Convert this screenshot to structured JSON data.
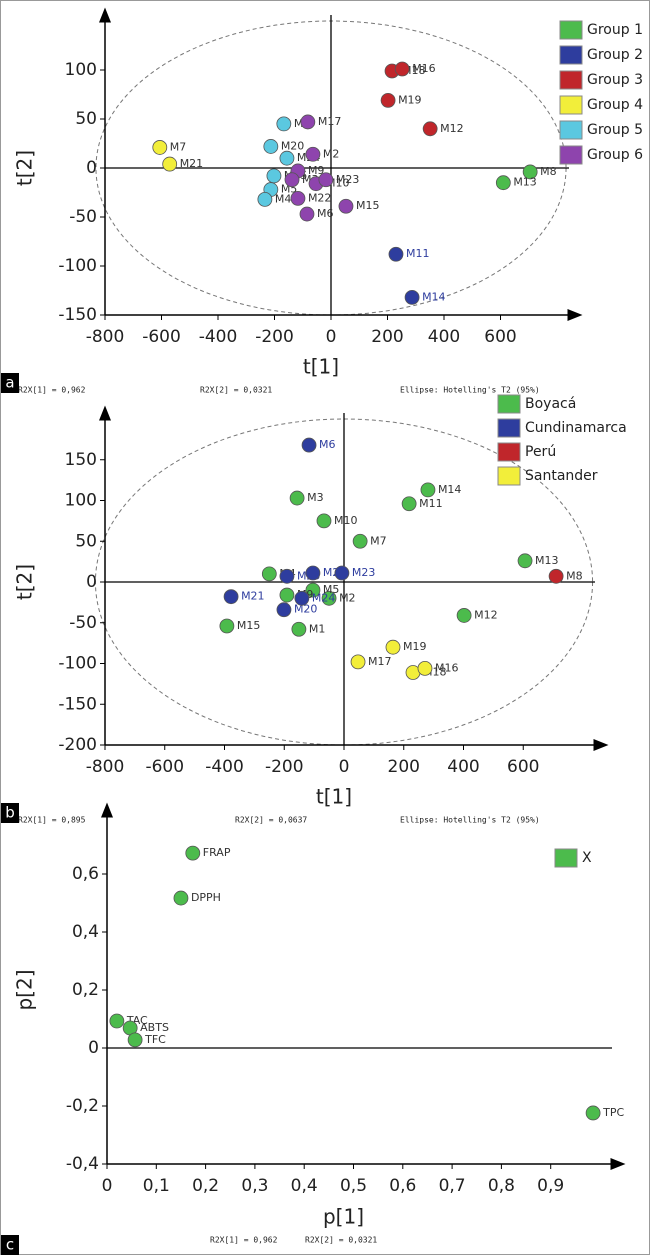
{
  "chart_data": [
    {
      "type": "scatter",
      "panel": "a",
      "x_label": "t[1]",
      "y_label": "t[2]",
      "xlim": [
        -800,
        800
      ],
      "ylim": [
        -150,
        150
      ],
      "xticks": [
        -800,
        -600,
        -400,
        -200,
        0,
        200,
        400,
        600
      ],
      "yticks": [
        -150,
        -100,
        -50,
        0,
        50,
        100
      ],
      "ellipse": true,
      "footer": [
        "R2X[1] = 0,962",
        "R2X[2] = 0,0321",
        "Ellipse: Hotelling's T2 (95%)"
      ],
      "series": [
        {
          "name": "Group 1",
          "color": "#4cbb4c",
          "x": [
            705,
            610
          ],
          "y": [
            -4,
            -15
          ],
          "labels": [
            "M8",
            "M13"
          ]
        },
        {
          "name": "Group 2",
          "color": "#2e3d9e",
          "label_color": "#2e3d9e",
          "x": [
            230,
            287
          ],
          "y": [
            -88,
            -132
          ],
          "labels": [
            "M11",
            "M14"
          ]
        },
        {
          "name": "Group 3",
          "color": "#c0262b",
          "x": [
            216,
            252,
            202,
            351
          ],
          "y": [
            99,
            101,
            69,
            40
          ],
          "labels": [
            "M18",
            "M16",
            "M19",
            "M12"
          ]
        },
        {
          "name": "Group 4",
          "color": "#f2ee3a",
          "x": [
            -606,
            -571
          ],
          "y": [
            21,
            4
          ],
          "labels": [
            "M7",
            "M21"
          ]
        },
        {
          "name": "Group 5",
          "color": "#5bc8e0",
          "x": [
            -167,
            -213,
            -156,
            -202,
            -213,
            -234
          ],
          "y": [
            45,
            22,
            10,
            -8,
            -22,
            -32
          ],
          "labels": [
            "M1",
            "M20",
            "M24",
            "M25",
            "M5",
            "M4"
          ]
        },
        {
          "name": "Group 6",
          "color": "#8e44ad",
          "x": [
            -82,
            -64,
            -117,
            -138,
            -53,
            -18,
            -117,
            -85,
            53
          ],
          "y": [
            47,
            14,
            -3,
            -12,
            -16,
            -12,
            -31,
            -47,
            -39
          ],
          "labels": [
            "M17",
            "M2",
            "M9",
            "M3",
            "M10",
            "M23",
            "M22",
            "M6",
            "M15"
          ]
        }
      ]
    },
    {
      "type": "scatter",
      "panel": "b",
      "x_label": "t[1]",
      "y_label": "t[2]",
      "xlim": [
        -800,
        800
      ],
      "ylim": [
        -200,
        200
      ],
      "xticks": [
        -800,
        -600,
        -400,
        -200,
        0,
        200,
        400,
        600
      ],
      "yticks": [
        -200,
        -150,
        -100,
        -50,
        0,
        50,
        100,
        150
      ],
      "ellipse": true,
      "footer": [
        "R2X[1] = 0,895",
        "R2X[2] = 0,0637",
        "Ellipse: Hotelling's T2 (95%)"
      ],
      "series": [
        {
          "name": "Boyacá",
          "color": "#4cbb4c",
          "x": [
            -157,
            -67,
            54,
            218,
            281,
            606,
            402,
            -250,
            -392,
            -151,
            -50,
            -104,
            -191
          ],
          "y": [
            103,
            75,
            50,
            96,
            113,
            26,
            -41,
            10,
            -54,
            -58,
            -20,
            -10,
            -16
          ],
          "labels": [
            "M3",
            "M10",
            "M7",
            "M11",
            "M14",
            "M13",
            "M12",
            "M4",
            "M15",
            "M1",
            "M2",
            "M5",
            "M9"
          ]
        },
        {
          "name": "Cundinamarca",
          "color": "#2e3d9e",
          "label_color": "#2e3d9e",
          "x": [
            -117,
            -191,
            -104,
            -7,
            -378,
            -201,
            -141
          ],
          "y": [
            168,
            7,
            11,
            11,
            -18,
            -34,
            -20
          ],
          "labels": [
            "M6",
            "M25",
            "M22",
            "M23",
            "M21",
            "M20",
            "M24"
          ]
        },
        {
          "name": "Perú",
          "color": "#c0262b",
          "x": [
            710
          ],
          "y": [
            7
          ],
          "labels": [
            "M8"
          ]
        },
        {
          "name": "Santander",
          "color": "#f2ee3a",
          "x": [
            47,
            164,
            231,
            271
          ],
          "y": [
            -98,
            -80,
            -111,
            -106
          ],
          "labels": [
            "M17",
            "M19",
            "M18",
            "M16"
          ]
        }
      ]
    },
    {
      "type": "scatter",
      "panel": "c",
      "x_label": "p[1]",
      "y_label": "p[2]",
      "xlim": [
        0,
        1
      ],
      "ylim": [
        -0.4,
        0.8
      ],
      "xticks": [
        0,
        {
          "value": 0.1,
          "label": "0,1"
        },
        {
          "value": 0.2,
          "label": "0,2"
        },
        {
          "value": 0.3,
          "label": "0,3"
        },
        {
          "value": 0.4,
          "label": "0,4"
        },
        {
          "value": 0.5,
          "label": "0,5"
        },
        {
          "value": 0.6,
          "label": "0,6"
        },
        {
          "value": 0.7,
          "label": "0,7"
        },
        {
          "value": 0.8,
          "label": "0,8"
        },
        {
          "value": 0.9,
          "label": "0,9"
        }
      ],
      "yticks": [
        {
          "value": -0.4,
          "label": "-0,4"
        },
        {
          "value": -0.2,
          "label": "-0,2"
        },
        0,
        {
          "value": 0.2,
          "label": "0,2"
        },
        {
          "value": 0.4,
          "label": "0,4"
        },
        {
          "value": 0.6,
          "label": "0,6"
        }
      ],
      "ellipse": false,
      "footer": [
        "R2X[1] = 0,962",
        "R2X[2] = 0,0321"
      ],
      "series": [
        {
          "name": "X",
          "color": "#4cbb4c",
          "x": [
            0.174,
            0.15,
            0.02,
            0.047,
            0.057,
            0.986
          ],
          "y": [
            0.672,
            0.517,
            0.093,
            0.069,
            0.028,
            -0.224
          ],
          "labels": [
            "FRAP",
            "DPPH",
            "TAC",
            "ABTS",
            "TFC",
            "TPC"
          ]
        }
      ]
    }
  ]
}
